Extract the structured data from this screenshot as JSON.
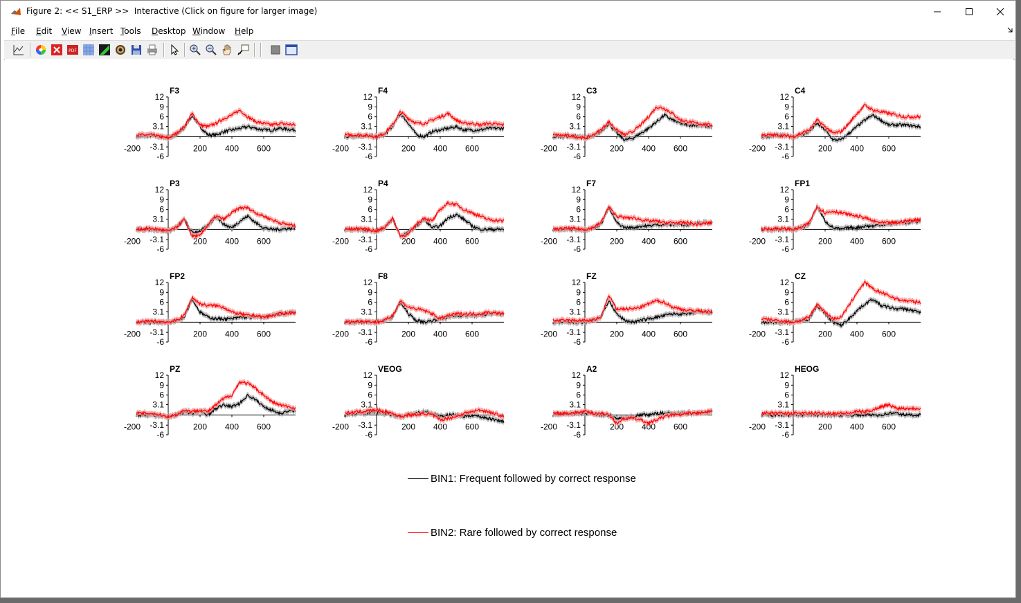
{
  "window": {
    "title": "Figure 2: << S1_ERP >>  Interactive (Click on figure for larger image)"
  },
  "menu": [
    "File",
    "Edit",
    "View",
    "Insert",
    "Tools",
    "Desktop",
    "Window",
    "Help"
  ],
  "toolbar": {
    "tools": [
      "plot-tools-icon",
      "color-wheel-icon",
      "close-figure-icon",
      "pdf-icon",
      "grid-icon",
      "brush-icon",
      "target-icon",
      "save-icon",
      "print-icon",
      "pointer-icon",
      "zoom-in-icon",
      "zoom-out-icon",
      "pan-icon",
      "data-cursor-icon",
      "legend-toggle-icon",
      "dock-icon"
    ]
  },
  "chart_data": {
    "type": "line",
    "x_ticks": [
      "-200",
      "200",
      "400",
      "600"
    ],
    "y_ticks": [
      "12",
      "9",
      "6",
      "3.1",
      "-3.1",
      "-6"
    ],
    "xlim": [
      -200,
      800
    ],
    "ylim": [
      -6,
      12
    ],
    "colors": {
      "bin1": "#000000",
      "bin2": "#ff0000",
      "bin2_band": "#f4a0a0",
      "bin1_band": "#a8a8a8"
    },
    "legend": [
      {
        "color": "#000000",
        "label": "BIN1: Frequent followed by correct response"
      },
      {
        "color": "#ff0000",
        "label": "BIN2: Rare followed by correct response"
      }
    ],
    "x": [
      -200,
      -100,
      0,
      50,
      100,
      150,
      200,
      250,
      300,
      350,
      400,
      450,
      500,
      550,
      600,
      650,
      700,
      800
    ],
    "channels": [
      {
        "name": "F3",
        "bin1": [
          0,
          0.3,
          -0.3,
          0.5,
          2.5,
          6.5,
          3,
          0.5,
          0.5,
          1.5,
          2,
          2.5,
          3,
          2.5,
          2,
          2,
          2.5,
          2
        ],
        "bin2": [
          0.5,
          0.5,
          -0.5,
          1,
          3,
          7,
          3.5,
          3,
          4,
          5.5,
          6.5,
          8,
          6,
          4.5,
          4,
          3.5,
          4,
          3.5
        ]
      },
      {
        "name": "F4",
        "bin1": [
          0,
          0.3,
          0,
          0.5,
          3,
          7,
          4,
          0.5,
          0,
          1.5,
          2,
          2.5,
          3,
          2,
          2,
          2,
          2.5,
          2.5
        ],
        "bin2": [
          0.5,
          0.5,
          0,
          1,
          3.5,
          7.5,
          5.5,
          4,
          4,
          5,
          6,
          7,
          5,
          4,
          4,
          3.5,
          4,
          3.5
        ]
      },
      {
        "name": "C3",
        "bin1": [
          0,
          0.2,
          -0.3,
          0,
          1.5,
          4,
          1,
          -1,
          -0.5,
          1,
          2.5,
          4.5,
          6.5,
          5,
          4,
          3.5,
          3.5,
          3
        ],
        "bin2": [
          0.5,
          0.3,
          -0.5,
          0.5,
          2,
          4.5,
          2,
          0.5,
          1.5,
          3.5,
          6,
          9,
          8.5,
          7,
          5,
          4.5,
          4,
          3.5
        ]
      },
      {
        "name": "C4",
        "bin1": [
          0,
          0.3,
          0,
          0.5,
          1.5,
          4,
          2,
          -1,
          -1,
          1,
          3,
          5,
          6.5,
          5,
          3.5,
          3.5,
          3.5,
          3
        ],
        "bin2": [
          0.5,
          0.5,
          0,
          1,
          2,
          5,
          3,
          1,
          1.5,
          4,
          7,
          9.5,
          8,
          7.5,
          7,
          6.5,
          6,
          6
        ]
      },
      {
        "name": "P3",
        "bin1": [
          0,
          0,
          -0.5,
          0.5,
          3,
          -1,
          -0.5,
          1,
          4,
          1.5,
          0.5,
          2.5,
          4,
          2,
          0.5,
          0,
          0,
          0.5
        ],
        "bin2": [
          0,
          0.3,
          -0.5,
          0.5,
          3,
          -2,
          -2,
          1.5,
          4,
          3,
          5,
          6.5,
          6.5,
          5,
          4,
          3,
          2,
          1
        ]
      },
      {
        "name": "P4",
        "bin1": [
          0,
          0,
          -0.5,
          0.5,
          3,
          -2,
          -1,
          1,
          3,
          0.5,
          1,
          3.5,
          4.5,
          3,
          1,
          0,
          0,
          0
        ],
        "bin2": [
          0,
          0.3,
          -0.5,
          0.5,
          3.5,
          -2,
          -1.5,
          1.5,
          3.5,
          2.5,
          6,
          8,
          7.5,
          6,
          5,
          4,
          3,
          2.5
        ]
      },
      {
        "name": "F7",
        "bin1": [
          0,
          0,
          0,
          0.5,
          1.5,
          6.5,
          2,
          0.5,
          0.5,
          1,
          1,
          1.5,
          1.5,
          1.5,
          1.5,
          1.5,
          2,
          2
        ],
        "bin2": [
          0,
          0.3,
          0,
          0.5,
          2,
          6.8,
          4,
          3.5,
          3.5,
          3,
          2.5,
          2.5,
          2,
          2,
          2,
          2,
          1.5,
          2
        ]
      },
      {
        "name": "FP1",
        "bin1": [
          0,
          0,
          0,
          0.5,
          1.5,
          7,
          2.5,
          0.5,
          0,
          0.5,
          0.5,
          1,
          1,
          1.5,
          1.5,
          2,
          2,
          2.5
        ],
        "bin2": [
          0,
          0.3,
          0,
          0.5,
          2,
          7,
          5,
          5.5,
          5,
          4.5,
          4,
          3.5,
          2.5,
          2,
          2,
          2,
          2.5,
          3
        ]
      },
      {
        "name": "FP2",
        "bin1": [
          0,
          0,
          0,
          0.5,
          1.5,
          7,
          3,
          1.5,
          1,
          1,
          1,
          1.5,
          1.5,
          1.5,
          1.5,
          2,
          2.5,
          3
        ],
        "bin2": [
          0,
          0.3,
          0,
          0.5,
          2,
          7.5,
          5.5,
          5,
          5,
          4.5,
          3,
          2.5,
          2,
          2,
          1.5,
          2,
          2.5,
          3
        ]
      },
      {
        "name": "F8",
        "bin1": [
          0,
          0,
          0,
          0.5,
          1.5,
          6,
          2.5,
          0.5,
          0,
          0.5,
          1,
          1.5,
          2,
          2,
          2,
          2,
          2.5,
          2.5
        ],
        "bin2": [
          0,
          0.3,
          0,
          0.5,
          2,
          6.5,
          4.5,
          4,
          3.5,
          2.5,
          1,
          2,
          2.5,
          2.5,
          2.5,
          2.5,
          3,
          2.5
        ]
      },
      {
        "name": "FZ",
        "bin1": [
          0,
          0,
          0,
          0.5,
          1.5,
          6.5,
          2.5,
          0.5,
          0,
          0.5,
          1,
          1.5,
          2,
          2.5,
          2.5,
          2.5,
          3,
          3
        ],
        "bin2": [
          0.5,
          0.5,
          0.5,
          0.5,
          1.5,
          8,
          4,
          4,
          4,
          4.5,
          5.5,
          6.5,
          6,
          4.5,
          4,
          3.5,
          3.5,
          3
        ]
      },
      {
        "name": "CZ",
        "bin1": [
          0,
          0,
          0,
          0.5,
          1,
          5,
          2.5,
          0,
          -1,
          1,
          3.5,
          5.5,
          7,
          5,
          4.5,
          4,
          4,
          3
        ],
        "bin2": [
          1,
          0.5,
          0,
          0.5,
          1.5,
          5.5,
          3,
          1,
          1.5,
          5,
          9,
          12,
          10,
          9,
          8,
          7,
          6.5,
          6
        ]
      },
      {
        "name": "PZ",
        "bin1": [
          0,
          0,
          -0.5,
          0,
          1,
          0.5,
          1,
          0,
          2,
          3,
          2.5,
          3.5,
          6,
          4.5,
          2.5,
          1.5,
          0.5,
          1.5
        ],
        "bin2": [
          0.5,
          0.5,
          -0.5,
          0,
          1.5,
          1,
          1.5,
          1,
          3,
          5,
          6,
          10,
          9.5,
          8,
          6,
          4,
          3,
          2
        ]
      },
      {
        "name": "VEOG",
        "bin1": [
          0,
          0.5,
          1,
          0.5,
          0,
          -0.5,
          0,
          0.5,
          1,
          0.5,
          -0.5,
          0,
          0,
          -0.5,
          0,
          -0.5,
          -1,
          -2
        ],
        "bin2": [
          0.5,
          1,
          1.5,
          1,
          0.5,
          -0.5,
          0,
          0,
          0.5,
          0,
          -1.5,
          -1,
          -0.5,
          0.5,
          1,
          1.5,
          1,
          -0.5
        ]
      },
      {
        "name": "A2",
        "bin1": [
          0,
          0.5,
          0.5,
          0.5,
          0,
          0,
          -1,
          -1,
          -0.5,
          0,
          0,
          0.5,
          0.5,
          0.5,
          0.5,
          0.5,
          0.5,
          1
        ],
        "bin2": [
          0.5,
          0.5,
          1,
          0.5,
          0.5,
          0,
          -2.5,
          -1,
          -1,
          -1.5,
          -2.5,
          -1.5,
          -0.5,
          0,
          0,
          0.5,
          0.5,
          1
        ]
      },
      {
        "name": "HEOG",
        "bin1": [
          0,
          0,
          0,
          0,
          0,
          0,
          0,
          0,
          0,
          0,
          0,
          0,
          0,
          0,
          0.5,
          0.5,
          0,
          0
        ],
        "bin2": [
          0.5,
          0.5,
          0.5,
          0.5,
          0.5,
          0.5,
          0.5,
          0.5,
          0.5,
          0.5,
          1,
          1,
          1.5,
          2.5,
          3,
          2,
          2,
          2
        ]
      }
    ]
  }
}
